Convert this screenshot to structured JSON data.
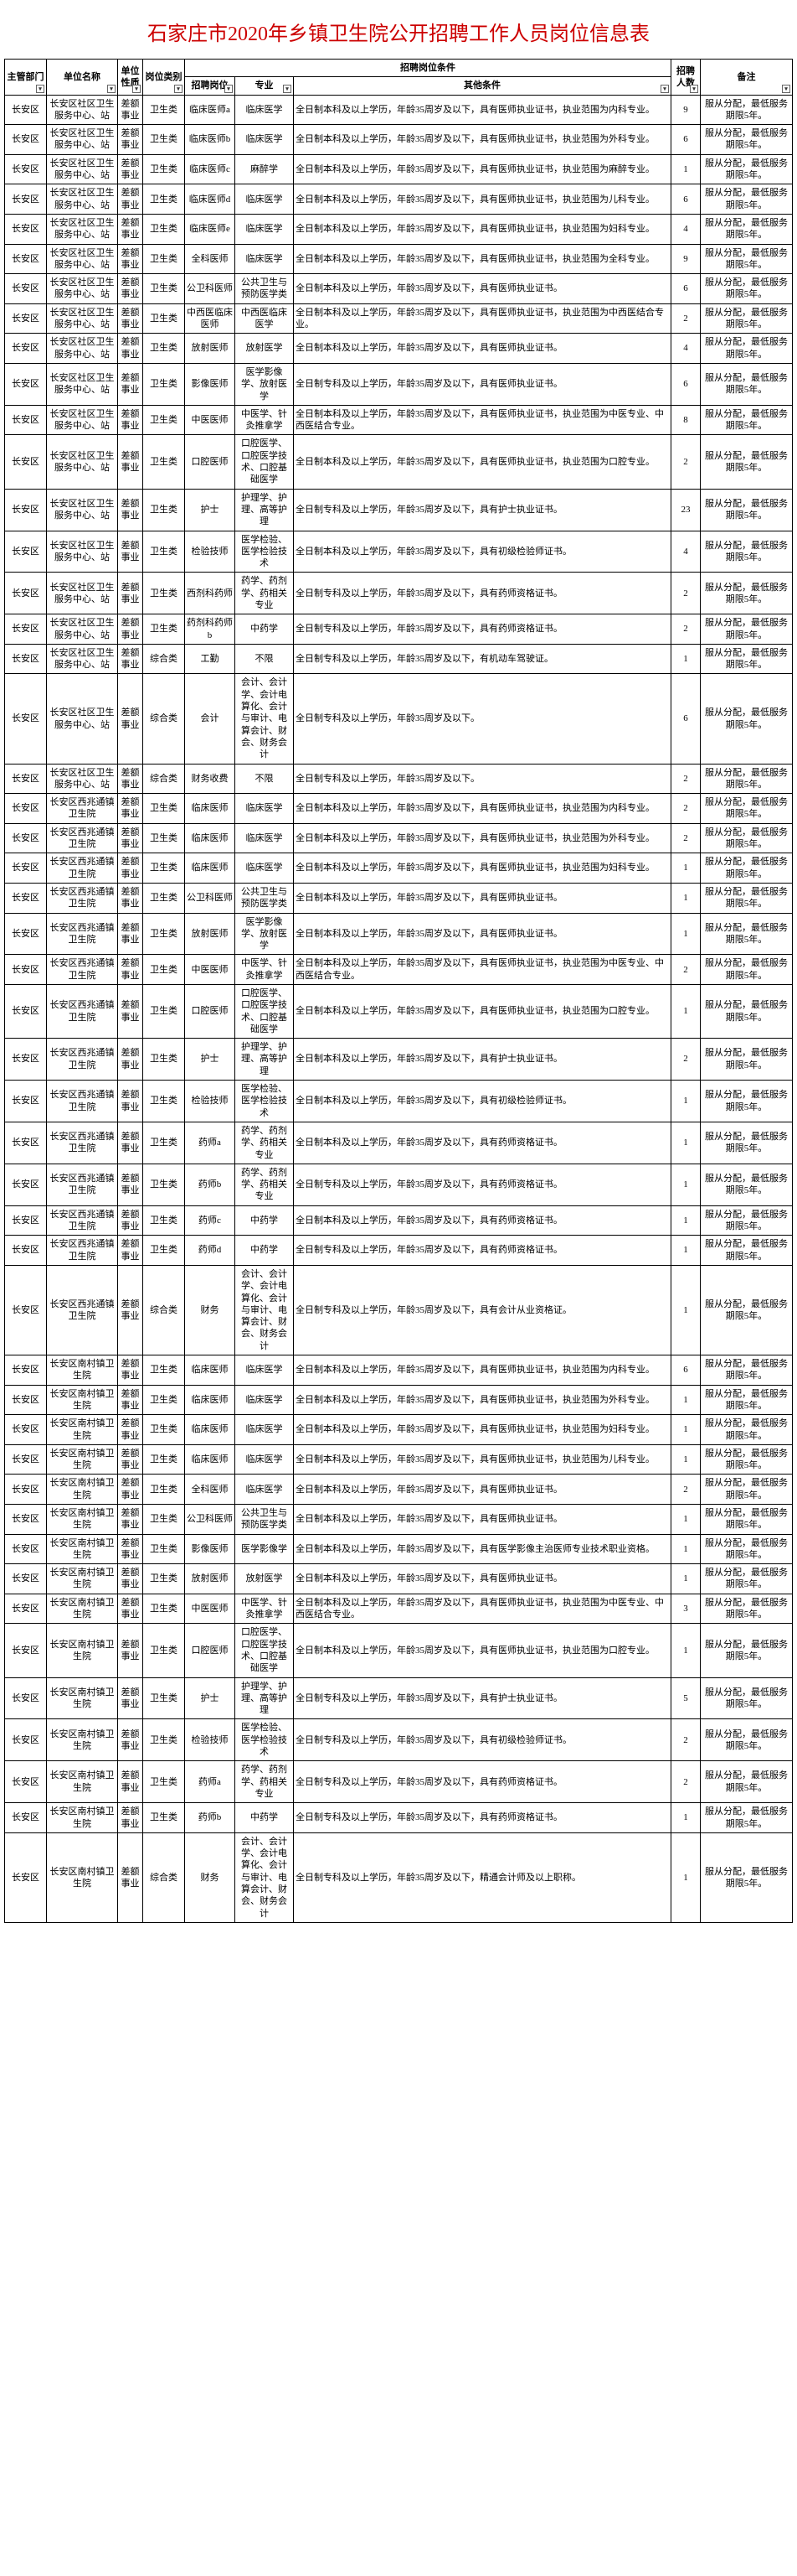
{
  "title": "石家庄市2020年乡镇卫生院公开招聘工作人员岗位信息表",
  "headers": {
    "dept": "主管部门",
    "unit": "单位名称",
    "nature": "单位性质",
    "postcat": "岗位类别",
    "conditions": "招聘岗位条件",
    "post": "招聘岗位",
    "major": "专业",
    "other": "其他条件",
    "count": "招聘人数",
    "remark": "备注"
  },
  "remark_std": "服从分配，最低服务期限5年。",
  "rows": [
    {
      "dept": "长安区",
      "unit": "长安区社区卫生服务中心、站",
      "nature": "差额事业",
      "postcat": "卫生类",
      "post": "临床医师a",
      "major": "临床医学",
      "other": "全日制本科及以上学历，年龄35周岁及以下，具有医师执业证书，执业范围为内科专业。",
      "count": "9"
    },
    {
      "dept": "长安区",
      "unit": "长安区社区卫生服务中心、站",
      "nature": "差额事业",
      "postcat": "卫生类",
      "post": "临床医师b",
      "major": "临床医学",
      "other": "全日制本科及以上学历，年龄35周岁及以下，具有医师执业证书，执业范围为外科专业。",
      "count": "6"
    },
    {
      "dept": "长安区",
      "unit": "长安区社区卫生服务中心、站",
      "nature": "差额事业",
      "postcat": "卫生类",
      "post": "临床医师c",
      "major": "麻醉学",
      "other": "全日制本科及以上学历，年龄35周岁及以下，具有医师执业证书，执业范围为麻醉专业。",
      "count": "1"
    },
    {
      "dept": "长安区",
      "unit": "长安区社区卫生服务中心、站",
      "nature": "差额事业",
      "postcat": "卫生类",
      "post": "临床医师d",
      "major": "临床医学",
      "other": "全日制本科及以上学历，年龄35周岁及以下，具有医师执业证书，执业范围为儿科专业。",
      "count": "6"
    },
    {
      "dept": "长安区",
      "unit": "长安区社区卫生服务中心、站",
      "nature": "差额事业",
      "postcat": "卫生类",
      "post": "临床医师e",
      "major": "临床医学",
      "other": "全日制本科及以上学历，年龄35周岁及以下，具有医师执业证书，执业范围为妇科专业。",
      "count": "4"
    },
    {
      "dept": "长安区",
      "unit": "长安区社区卫生服务中心、站",
      "nature": "差额事业",
      "postcat": "卫生类",
      "post": "全科医师",
      "major": "临床医学",
      "other": "全日制本科及以上学历，年龄35周岁及以下，具有医师执业证书，执业范围为全科专业。",
      "count": "9"
    },
    {
      "dept": "长安区",
      "unit": "长安区社区卫生服务中心、站",
      "nature": "差额事业",
      "postcat": "卫生类",
      "post": "公卫科医师",
      "major": "公共卫生与预防医学类",
      "other": "全日制本科及以上学历，年龄35周岁及以下，具有医师执业证书。",
      "count": "6"
    },
    {
      "dept": "长安区",
      "unit": "长安区社区卫生服务中心、站",
      "nature": "差额事业",
      "postcat": "卫生类",
      "post": "中西医临床医师",
      "major": "中西医临床医学",
      "other": "全日制本科及以上学历，年龄35周岁及以下，具有医师执业证书，执业范围为中西医结合专业。",
      "count": "2"
    },
    {
      "dept": "长安区",
      "unit": "长安区社区卫生服务中心、站",
      "nature": "差额事业",
      "postcat": "卫生类",
      "post": "放射医师",
      "major": "放射医学",
      "other": "全日制本科及以上学历，年龄35周岁及以下，具有医师执业证书。",
      "count": "4"
    },
    {
      "dept": "长安区",
      "unit": "长安区社区卫生服务中心、站",
      "nature": "差额事业",
      "postcat": "卫生类",
      "post": "影像医师",
      "major": "医学影像学、放射医学",
      "other": "全日制专科及以上学历，年龄35周岁及以下，具有医师执业证书。",
      "count": "6"
    },
    {
      "dept": "长安区",
      "unit": "长安区社区卫生服务中心、站",
      "nature": "差额事业",
      "postcat": "卫生类",
      "post": "中医医师",
      "major": "中医学、针灸推拿学",
      "other": "全日制本科及以上学历，年龄35周岁及以下，具有医师执业证书，执业范围为中医专业、中西医结合专业。",
      "count": "8"
    },
    {
      "dept": "长安区",
      "unit": "长安区社区卫生服务中心、站",
      "nature": "差额事业",
      "postcat": "卫生类",
      "post": "口腔医师",
      "major": "口腔医学、口腔医学技术、口腔基础医学",
      "other": "全日制本科及以上学历，年龄35周岁及以下，具有医师执业证书，执业范围为口腔专业。",
      "count": "2"
    },
    {
      "dept": "长安区",
      "unit": "长安区社区卫生服务中心、站",
      "nature": "差额事业",
      "postcat": "卫生类",
      "post": "护士",
      "major": "护理学、护理、高等护理",
      "other": "全日制专科及以上学历，年龄35周岁及以下，具有护士执业证书。",
      "count": "23"
    },
    {
      "dept": "长安区",
      "unit": "长安区社区卫生服务中心、站",
      "nature": "差额事业",
      "postcat": "卫生类",
      "post": "检验技师",
      "major": "医学检验、医学检验技术",
      "other": "全日制本科及以上学历，年龄35周岁及以下，具有初级检验师证书。",
      "count": "4"
    },
    {
      "dept": "长安区",
      "unit": "长安区社区卫生服务中心、站",
      "nature": "差额事业",
      "postcat": "卫生类",
      "post": "西剂科药师",
      "major": "药学、药剂学、药相关专业",
      "other": "全日制专科及以上学历，年龄35周岁及以下，具有药师资格证书。",
      "count": "2"
    },
    {
      "dept": "长安区",
      "unit": "长安区社区卫生服务中心、站",
      "nature": "差额事业",
      "postcat": "卫生类",
      "post": "药剂科药师b",
      "major": "中药学",
      "other": "全日制专科及以上学历，年龄35周岁及以下，具有药师资格证书。",
      "count": "2"
    },
    {
      "dept": "长安区",
      "unit": "长安区社区卫生服务中心、站",
      "nature": "差额事业",
      "postcat": "综合类",
      "post": "工勤",
      "major": "不限",
      "other": "全日制专科及以上学历，年龄35周岁及以下，有机动车驾驶证。",
      "count": "1"
    },
    {
      "dept": "长安区",
      "unit": "长安区社区卫生服务中心、站",
      "nature": "差额事业",
      "postcat": "综合类",
      "post": "会计",
      "major": "会计、会计学、会计电算化、会计与审计、电算会计、财会、财务会计",
      "other": "全日制专科及以上学历，年龄35周岁及以下。",
      "count": "6",
      "tall": true
    },
    {
      "dept": "长安区",
      "unit": "长安区社区卫生服务中心、站",
      "nature": "差额事业",
      "postcat": "综合类",
      "post": "财务收费",
      "major": "不限",
      "other": "全日制专科及以上学历，年龄35周岁及以下。",
      "count": "2"
    },
    {
      "dept": "长安区",
      "unit": "长安区西兆通镇卫生院",
      "nature": "差额事业",
      "postcat": "卫生类",
      "post": "临床医师",
      "major": "临床医学",
      "other": "全日制本科及以上学历，年龄35周岁及以下，具有医师执业证书，执业范围为内科专业。",
      "count": "2"
    },
    {
      "dept": "长安区",
      "unit": "长安区西兆通镇卫生院",
      "nature": "差额事业",
      "postcat": "卫生类",
      "post": "临床医师",
      "major": "临床医学",
      "other": "全日制本科及以上学历，年龄35周岁及以下，具有医师执业证书，执业范围为外科专业。",
      "count": "2"
    },
    {
      "dept": "长安区",
      "unit": "长安区西兆通镇卫生院",
      "nature": "差额事业",
      "postcat": "卫生类",
      "post": "临床医师",
      "major": "临床医学",
      "other": "全日制本科及以上学历，年龄35周岁及以下，具有医师执业证书，执业范围为妇科专业。",
      "count": "1"
    },
    {
      "dept": "长安区",
      "unit": "长安区西兆通镇卫生院",
      "nature": "差额事业",
      "postcat": "卫生类",
      "post": "公卫科医师",
      "major": "公共卫生与预防医学类",
      "other": "全日制本科及以上学历，年龄35周岁及以下，具有医师执业证书。",
      "count": "1"
    },
    {
      "dept": "长安区",
      "unit": "长安区西兆通镇卫生院",
      "nature": "差额事业",
      "postcat": "卫生类",
      "post": "放射医师",
      "major": "医学影像学、放射医学",
      "other": "全日制本科及以上学历，年龄35周岁及以下，具有医师执业证书。",
      "count": "1"
    },
    {
      "dept": "长安区",
      "unit": "长安区西兆通镇卫生院",
      "nature": "差额事业",
      "postcat": "卫生类",
      "post": "中医医师",
      "major": "中医学、针灸推拿学",
      "other": "全日制本科及以上学历，年龄35周岁及以下，具有医师执业证书，执业范围为中医专业、中西医结合专业。",
      "count": "2"
    },
    {
      "dept": "长安区",
      "unit": "长安区西兆通镇卫生院",
      "nature": "差额事业",
      "postcat": "卫生类",
      "post": "口腔医师",
      "major": "口腔医学、口腔医学技术、口腔基础医学",
      "other": "全日制本科及以上学历，年龄35周岁及以下，具有医师执业证书，执业范围为口腔专业。",
      "count": "1"
    },
    {
      "dept": "长安区",
      "unit": "长安区西兆通镇卫生院",
      "nature": "差额事业",
      "postcat": "卫生类",
      "post": "护士",
      "major": "护理学、护理、高等护理",
      "other": "全日制本科及以上学历，年龄35周岁及以下，具有护士执业证书。",
      "count": "2"
    },
    {
      "dept": "长安区",
      "unit": "长安区西兆通镇卫生院",
      "nature": "差额事业",
      "postcat": "卫生类",
      "post": "检验技师",
      "major": "医学检验、医学检验技术",
      "other": "全日制本科及以上学历，年龄35周岁及以下，具有初级检验师证书。",
      "count": "1"
    },
    {
      "dept": "长安区",
      "unit": "长安区西兆通镇卫生院",
      "nature": "差额事业",
      "postcat": "卫生类",
      "post": "药师a",
      "major": "药学、药剂学、药相关专业",
      "other": "全日制本科及以上学历，年龄35周岁及以下，具有药师资格证书。",
      "count": "1"
    },
    {
      "dept": "长安区",
      "unit": "长安区西兆通镇卫生院",
      "nature": "差额事业",
      "postcat": "卫生类",
      "post": "药师b",
      "major": "药学、药剂学、药相关专业",
      "other": "全日制专科及以上学历，年龄35周岁及以下，具有药师资格证书。",
      "count": "1"
    },
    {
      "dept": "长安区",
      "unit": "长安区西兆通镇卫生院",
      "nature": "差额事业",
      "postcat": "卫生类",
      "post": "药师c",
      "major": "中药学",
      "other": "全日制本科及以上学历，年龄35周岁及以下，具有药师资格证书。",
      "count": "1"
    },
    {
      "dept": "长安区",
      "unit": "长安区西兆通镇卫生院",
      "nature": "差额事业",
      "postcat": "卫生类",
      "post": "药师d",
      "major": "中药学",
      "other": "全日制专科及以上学历，年龄35周岁及以下，具有药师资格证书。",
      "count": "1"
    },
    {
      "dept": "长安区",
      "unit": "长安区西兆通镇卫生院",
      "nature": "差额事业",
      "postcat": "综合类",
      "post": "财务",
      "major": "会计、会计学、会计电算化、会计与审计、电算会计、财会、财务会计",
      "other": "全日制专科及以上学历，年龄35周岁及以下，具有会计从业资格证。",
      "count": "1",
      "tall": true
    },
    {
      "dept": "长安区",
      "unit": "长安区南村镇卫生院",
      "nature": "差额事业",
      "postcat": "卫生类",
      "post": "临床医师",
      "major": "临床医学",
      "other": "全日制本科及以上学历，年龄35周岁及以下，具有医师执业证书，执业范围为内科专业。",
      "count": "6"
    },
    {
      "dept": "长安区",
      "unit": "长安区南村镇卫生院",
      "nature": "差额事业",
      "postcat": "卫生类",
      "post": "临床医师",
      "major": "临床医学",
      "other": "全日制本科及以上学历，年龄35周岁及以下，具有医师执业证书，执业范围为外科专业。",
      "count": "1"
    },
    {
      "dept": "长安区",
      "unit": "长安区南村镇卫生院",
      "nature": "差额事业",
      "postcat": "卫生类",
      "post": "临床医师",
      "major": "临床医学",
      "other": "全日制本科及以上学历，年龄35周岁及以下，具有医师执业证书，执业范围为妇科专业。",
      "count": "1"
    },
    {
      "dept": "长安区",
      "unit": "长安区南村镇卫生院",
      "nature": "差额事业",
      "postcat": "卫生类",
      "post": "临床医师",
      "major": "临床医学",
      "other": "全日制本科及以上学历，年龄35周岁及以下，具有医师执业证书，执业范围为儿科专业。",
      "count": "1"
    },
    {
      "dept": "长安区",
      "unit": "长安区南村镇卫生院",
      "nature": "差额事业",
      "postcat": "卫生类",
      "post": "全科医师",
      "major": "临床医学",
      "other": "全日制本科及以上学历，年龄35周岁及以下，具有医师执业证书。",
      "count": "2"
    },
    {
      "dept": "长安区",
      "unit": "长安区南村镇卫生院",
      "nature": "差额事业",
      "postcat": "卫生类",
      "post": "公卫科医师",
      "major": "公共卫生与预防医学类",
      "other": "全日制本科及以上学历，年龄35周岁及以下，具有医师执业证书。",
      "count": "1"
    },
    {
      "dept": "长安区",
      "unit": "长安区南村镇卫生院",
      "nature": "差额事业",
      "postcat": "卫生类",
      "post": "影像医师",
      "major": "医学影像学",
      "other": "全日制本科及以上学历，年龄35周岁及以下，具有医学影像主治医师专业技术职业资格。",
      "count": "1"
    },
    {
      "dept": "长安区",
      "unit": "长安区南村镇卫生院",
      "nature": "差额事业",
      "postcat": "卫生类",
      "post": "放射医师",
      "major": "放射医学",
      "other": "全日制本科及以上学历，年龄35周岁及以下，具有医师执业证书。",
      "count": "1"
    },
    {
      "dept": "长安区",
      "unit": "长安区南村镇卫生院",
      "nature": "差额事业",
      "postcat": "卫生类",
      "post": "中医医师",
      "major": "中医学、针灸推拿学",
      "other": "全日制本科及以上学历，年龄35周岁及以下，具有医师执业证书，执业范围为中医专业、中西医结合专业。",
      "count": "3"
    },
    {
      "dept": "长安区",
      "unit": "长安区南村镇卫生院",
      "nature": "差额事业",
      "postcat": "卫生类",
      "post": "口腔医师",
      "major": "口腔医学、口腔医学技术、口腔基础医学",
      "other": "全日制本科及以上学历，年龄35周岁及以下，具有医师执业证书，执业范围为口腔专业。",
      "count": "1"
    },
    {
      "dept": "长安区",
      "unit": "长安区南村镇卫生院",
      "nature": "差额事业",
      "postcat": "卫生类",
      "post": "护士",
      "major": "护理学、护理、高等护理",
      "other": "全日制专科及以上学历，年龄35周岁及以下，具有护士执业证书。",
      "count": "5"
    },
    {
      "dept": "长安区",
      "unit": "长安区南村镇卫生院",
      "nature": "差额事业",
      "postcat": "卫生类",
      "post": "检验技师",
      "major": "医学检验、医学检验技术",
      "other": "全日制专科及以上学历，年龄35周岁及以下，具有初级检验师证书。",
      "count": "2"
    },
    {
      "dept": "长安区",
      "unit": "长安区南村镇卫生院",
      "nature": "差额事业",
      "postcat": "卫生类",
      "post": "药师a",
      "major": "药学、药剂学、药相关专业",
      "other": "全日制专科及以上学历，年龄35周岁及以下，具有药师资格证书。",
      "count": "2"
    },
    {
      "dept": "长安区",
      "unit": "长安区南村镇卫生院",
      "nature": "差额事业",
      "postcat": "卫生类",
      "post": "药师b",
      "major": "中药学",
      "other": "全日制专科及以上学历，年龄35周岁及以下，具有药师资格证书。",
      "count": "1"
    },
    {
      "dept": "长安区",
      "unit": "长安区南村镇卫生院",
      "nature": "差额事业",
      "postcat": "综合类",
      "post": "财务",
      "major": "会计、会计学、会计电算化、会计与审计、电算会计、财会、财务会计",
      "other": "全日制专科及以上学历，年龄35周岁及以下，精通会计师及以上职称。",
      "count": "1",
      "tall": true
    }
  ]
}
